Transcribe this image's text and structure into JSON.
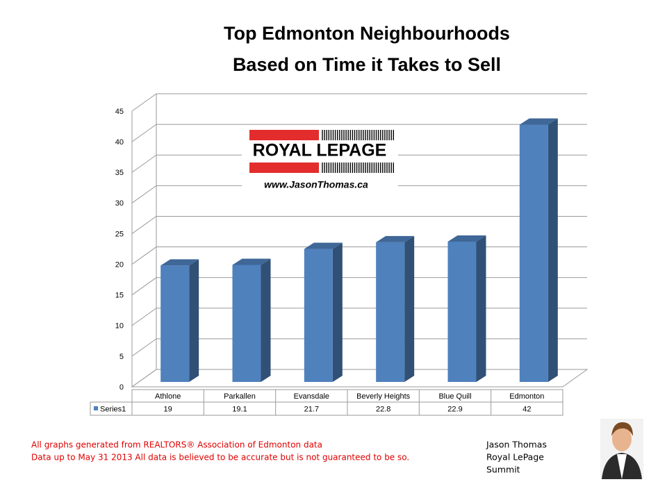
{
  "chart_data": {
    "type": "bar3d",
    "title": [
      "Top Edmonton Neighbourhoods",
      "Based on Time it Takes to Sell"
    ],
    "categories": [
      "Athlone",
      "Parkallen",
      "Evansdale",
      "Beverly Heights",
      "Blue Quill",
      "Edmonton"
    ],
    "series": [
      {
        "name": "Series1",
        "color": "#4f81bd",
        "values": [
          19,
          19.1,
          21.7,
          22.8,
          22.9,
          42
        ]
      }
    ],
    "ylim": [
      0,
      45
    ],
    "yticks": [
      0,
      5,
      10,
      15,
      20,
      25,
      30,
      35,
      40,
      45
    ],
    "grid": true
  },
  "logo": {
    "brand": "ROYAL LEPAGE",
    "website": "www.JasonThomas.ca"
  },
  "footer": [
    "All graphs generated from REALTORS® Association of Edmonton data",
    "Data up to  May 31 2013  All data is believed to be accurate but is not guaranteed to be so."
  ],
  "signature": [
    "Jason Thomas",
    "Royal LePage",
    "Summit"
  ]
}
